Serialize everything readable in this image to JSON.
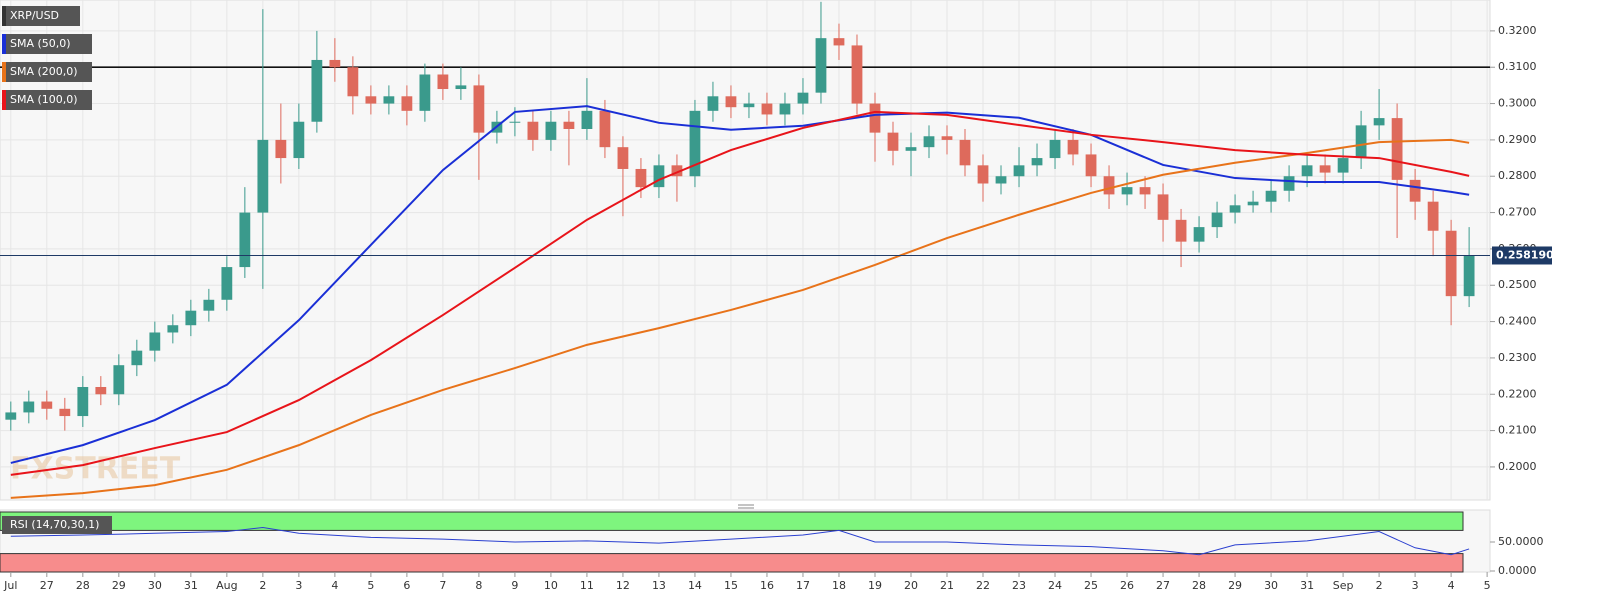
{
  "chart_data": [
    {
      "type": "candlestick",
      "title": "XRP/USD",
      "watermark": "FXSTREET",
      "up_color": "#3a9a8c",
      "down_color": "#de6a5c",
      "x": [
        0,
        0.5,
        1,
        1.5,
        2,
        2.5,
        3,
        3.5,
        4,
        4.5,
        5,
        5.5,
        6,
        6.5,
        7,
        7.5,
        8,
        8.5,
        9,
        9.5,
        10,
        10.5,
        11,
        11.5,
        12,
        12.5,
        13,
        13.5,
        14,
        14.5,
        15,
        15.5,
        16,
        16.5,
        17,
        17.5,
        18,
        18.5,
        19,
        19.5,
        20,
        20.5,
        21,
        21.5,
        22,
        22.5,
        23,
        23.5,
        24,
        24.5,
        25,
        25.5,
        26,
        26.5,
        27,
        27.5,
        28,
        28.5,
        29,
        29.5,
        30,
        30.5,
        31,
        31.5,
        32,
        32.5,
        33,
        33.5,
        34,
        34.5,
        35,
        35.5,
        36,
        36.5,
        37,
        37.5,
        38,
        38.5,
        39,
        39.5,
        40,
        40.5
      ],
      "open": [
        0.213,
        0.215,
        0.218,
        0.216,
        0.214,
        0.222,
        0.22,
        0.228,
        0.232,
        0.237,
        0.239,
        0.243,
        0.246,
        0.255,
        0.27,
        0.29,
        0.285,
        0.295,
        0.312,
        0.31,
        0.302,
        0.3,
        0.302,
        0.298,
        0.308,
        0.304,
        0.305,
        0.292,
        0.295,
        0.295,
        0.29,
        0.295,
        0.293,
        0.298,
        0.288,
        0.282,
        0.277,
        0.283,
        0.28,
        0.298,
        0.302,
        0.299,
        0.3,
        0.297,
        0.3,
        0.303,
        0.318,
        0.316,
        0.3,
        0.292,
        0.287,
        0.288,
        0.291,
        0.29,
        0.283,
        0.278,
        0.28,
        0.283,
        0.285,
        0.29,
        0.286,
        0.28,
        0.275,
        0.277,
        0.275,
        0.268,
        0.262,
        0.266,
        0.27,
        0.272,
        0.273,
        0.276,
        0.28,
        0.283,
        0.281,
        0.285,
        0.294,
        0.296,
        0.279,
        0.273,
        0.265,
        0.247
      ],
      "high": [
        0.218,
        0.221,
        0.221,
        0.219,
        0.225,
        0.225,
        0.231,
        0.235,
        0.24,
        0.242,
        0.246,
        0.249,
        0.258,
        0.277,
        0.326,
        0.3,
        0.3,
        0.32,
        0.318,
        0.313,
        0.305,
        0.305,
        0.305,
        0.311,
        0.311,
        0.31,
        0.308,
        0.298,
        0.299,
        0.298,
        0.298,
        0.298,
        0.307,
        0.301,
        0.291,
        0.285,
        0.286,
        0.286,
        0.301,
        0.306,
        0.305,
        0.303,
        0.303,
        0.303,
        0.307,
        0.328,
        0.322,
        0.319,
        0.303,
        0.295,
        0.292,
        0.294,
        0.294,
        0.293,
        0.286,
        0.283,
        0.288,
        0.289,
        0.293,
        0.293,
        0.289,
        0.283,
        0.281,
        0.28,
        0.278,
        0.271,
        0.269,
        0.273,
        0.275,
        0.276,
        0.279,
        0.283,
        0.286,
        0.286,
        0.288,
        0.298,
        0.304,
        0.3,
        0.282,
        0.276,
        0.268,
        0.266
      ],
      "low": [
        0.21,
        0.212,
        0.213,
        0.21,
        0.211,
        0.217,
        0.217,
        0.225,
        0.229,
        0.234,
        0.236,
        0.24,
        0.243,
        0.252,
        0.249,
        0.278,
        0.282,
        0.292,
        0.306,
        0.297,
        0.297,
        0.297,
        0.294,
        0.295,
        0.301,
        0.301,
        0.279,
        0.289,
        0.291,
        0.287,
        0.287,
        0.283,
        0.29,
        0.285,
        0.269,
        0.274,
        0.274,
        0.273,
        0.277,
        0.295,
        0.296,
        0.296,
        0.294,
        0.294,
        0.297,
        0.3,
        0.312,
        0.297,
        0.284,
        0.283,
        0.28,
        0.285,
        0.286,
        0.28,
        0.273,
        0.275,
        0.277,
        0.28,
        0.282,
        0.283,
        0.277,
        0.271,
        0.272,
        0.271,
        0.262,
        0.255,
        0.259,
        0.263,
        0.267,
        0.27,
        0.27,
        0.273,
        0.277,
        0.278,
        0.278,
        0.282,
        0.29,
        0.263,
        0.268,
        0.258,
        0.239,
        0.244
      ],
      "close": [
        0.215,
        0.218,
        0.216,
        0.214,
        0.222,
        0.22,
        0.228,
        0.232,
        0.237,
        0.239,
        0.243,
        0.246,
        0.255,
        0.27,
        0.29,
        0.285,
        0.295,
        0.312,
        0.31,
        0.302,
        0.3,
        0.302,
        0.298,
        0.308,
        0.304,
        0.305,
        0.292,
        0.295,
        0.295,
        0.29,
        0.295,
        0.293,
        0.298,
        0.288,
        0.282,
        0.277,
        0.283,
        0.28,
        0.298,
        0.302,
        0.299,
        0.3,
        0.297,
        0.3,
        0.303,
        0.318,
        0.316,
        0.3,
        0.292,
        0.287,
        0.288,
        0.291,
        0.29,
        0.283,
        0.278,
        0.28,
        0.283,
        0.285,
        0.29,
        0.286,
        0.28,
        0.275,
        0.277,
        0.275,
        0.268,
        0.262,
        0.266,
        0.27,
        0.272,
        0.273,
        0.276,
        0.28,
        0.283,
        0.281,
        0.285,
        0.294,
        0.296,
        0.279,
        0.273,
        0.265,
        0.247,
        0.25819
      ],
      "lines": [
        {
          "name": "SMA (50,0)",
          "color": "#1a2fd6",
          "x": [
            0,
            2,
            4,
            6,
            8,
            10,
            12,
            14,
            16,
            18,
            20,
            22,
            24,
            26,
            28,
            30,
            32,
            34,
            36,
            38,
            40,
            40.5
          ],
          "values": [
            0.2011,
            0.206,
            0.2129,
            0.2226,
            0.2404,
            0.2611,
            0.2817,
            0.2977,
            0.2993,
            0.2947,
            0.2928,
            0.2939,
            0.2969,
            0.2975,
            0.2961,
            0.2914,
            0.2831,
            0.2795,
            0.2784,
            0.2784,
            0.2757,
            0.2749
          ]
        },
        {
          "name": "SMA (200,0)",
          "color": "#e8731a",
          "x": [
            0,
            2,
            4,
            6,
            8,
            10,
            12,
            14,
            16,
            18,
            20,
            22,
            24,
            26,
            28,
            30,
            32,
            34,
            36,
            38,
            40,
            40.5
          ],
          "values": [
            0.1915,
            0.1928,
            0.195,
            0.1992,
            0.206,
            0.2143,
            0.2212,
            0.2272,
            0.2336,
            0.2382,
            0.2432,
            0.2487,
            0.2556,
            0.263,
            0.2694,
            0.2754,
            0.2804,
            0.2837,
            0.2864,
            0.2894,
            0.29,
            0.2892
          ]
        },
        {
          "name": "SMA (100,0)",
          "color": "#e8141a",
          "x": [
            0,
            2,
            4,
            6,
            8,
            10,
            12,
            14,
            16,
            18,
            20,
            22,
            24,
            26,
            28,
            30,
            32,
            34,
            36,
            38,
            40,
            40.5
          ],
          "values": [
            0.1978,
            0.2005,
            0.2052,
            0.2096,
            0.2184,
            0.2294,
            0.2418,
            0.2548,
            0.268,
            0.279,
            0.2872,
            0.2933,
            0.2977,
            0.2969,
            0.2941,
            0.2914,
            0.2894,
            0.2872,
            0.2859,
            0.285,
            0.2812,
            0.2801
          ]
        }
      ],
      "hline": 0.31,
      "last_price": {
        "value": 0.25819,
        "label": "0.258190"
      },
      "xlim": [
        -0.3,
        41.08
      ],
      "ylim": [
        0.1909,
        0.3285
      ],
      "yticks": [
        {
          "value": 0.2,
          "label": "0.2000"
        },
        {
          "value": 0.21,
          "label": "0.2100"
        },
        {
          "value": 0.22,
          "label": "0.2200"
        },
        {
          "value": 0.23,
          "label": "0.2300"
        },
        {
          "value": 0.24,
          "label": "0.2400"
        },
        {
          "value": 0.25,
          "label": "0.2500"
        },
        {
          "value": 0.26,
          "label": "0.2600"
        },
        {
          "value": 0.27,
          "label": "0.2700"
        },
        {
          "value": 0.28,
          "label": "0.2800"
        },
        {
          "value": 0.29,
          "label": "0.2900"
        },
        {
          "value": 0.3,
          "label": "0.3000"
        },
        {
          "value": 0.31,
          "label": "0.3100"
        },
        {
          "value": 0.32,
          "label": "0.3200"
        }
      ],
      "grid": true
    },
    {
      "type": "rsi",
      "title": "RSI (14,70,30,1)",
      "color": "#2a3fd0",
      "x": [
        0,
        2,
        4,
        6,
        7,
        8,
        10,
        12,
        14,
        16,
        18,
        20,
        22,
        23,
        24,
        26,
        28,
        30,
        32,
        33,
        34,
        36,
        38,
        39,
        40,
        40.5
      ],
      "values": [
        60,
        62,
        65,
        68,
        75,
        65,
        58,
        55,
        50,
        52,
        48,
        55,
        62,
        70,
        50,
        50,
        45,
        42,
        35,
        28,
        45,
        52,
        68,
        40,
        28,
        38
      ],
      "overbought": 70,
      "oversold": 30,
      "xlim": [
        -0.3,
        41.08
      ],
      "ylim": [
        0,
        100
      ],
      "yticks": [
        {
          "value": 50,
          "label": "50.0000"
        },
        {
          "value": 0,
          "label": "0.0000"
        }
      ],
      "xticks": [
        {
          "value": 0,
          "label": "Jul"
        },
        {
          "value": 1,
          "label": "27"
        },
        {
          "value": 2,
          "label": "28"
        },
        {
          "value": 3,
          "label": "29"
        },
        {
          "value": 4,
          "label": "30"
        },
        {
          "value": 5,
          "label": "31"
        },
        {
          "value": 6,
          "label": "Aug"
        },
        {
          "value": 7,
          "label": "2"
        },
        {
          "value": 8,
          "label": "3"
        },
        {
          "value": 9,
          "label": "4"
        },
        {
          "value": 10,
          "label": "5"
        },
        {
          "value": 11,
          "label": "6"
        },
        {
          "value": 12,
          "label": "7"
        },
        {
          "value": 13,
          "label": "8"
        },
        {
          "value": 14,
          "label": "9"
        },
        {
          "value": 15,
          "label": "10"
        },
        {
          "value": 16,
          "label": "11"
        },
        {
          "value": 17,
          "label": "12"
        },
        {
          "value": 18,
          "label": "13"
        },
        {
          "value": 19,
          "label": "14"
        },
        {
          "value": 20,
          "label": "15"
        },
        {
          "value": 21,
          "label": "16"
        },
        {
          "value": 22,
          "label": "17"
        },
        {
          "value": 23,
          "label": "18"
        },
        {
          "value": 24,
          "label": "19"
        },
        {
          "value": 25,
          "label": "20"
        },
        {
          "value": 26,
          "label": "21"
        },
        {
          "value": 27,
          "label": "22"
        },
        {
          "value": 28,
          "label": "23"
        },
        {
          "value": 29,
          "label": "24"
        },
        {
          "value": 30,
          "label": "25"
        },
        {
          "value": 31,
          "label": "26"
        },
        {
          "value": 32,
          "label": "27"
        },
        {
          "value": 33,
          "label": "28"
        },
        {
          "value": 34,
          "label": "29"
        },
        {
          "value": 35,
          "label": "30"
        },
        {
          "value": 36,
          "label": "31"
        },
        {
          "value": 37,
          "label": "Sep"
        },
        {
          "value": 38,
          "label": "2"
        },
        {
          "value": 39,
          "label": "3"
        },
        {
          "value": 40,
          "label": "4"
        },
        {
          "value": 41,
          "label": "5"
        }
      ]
    }
  ]
}
